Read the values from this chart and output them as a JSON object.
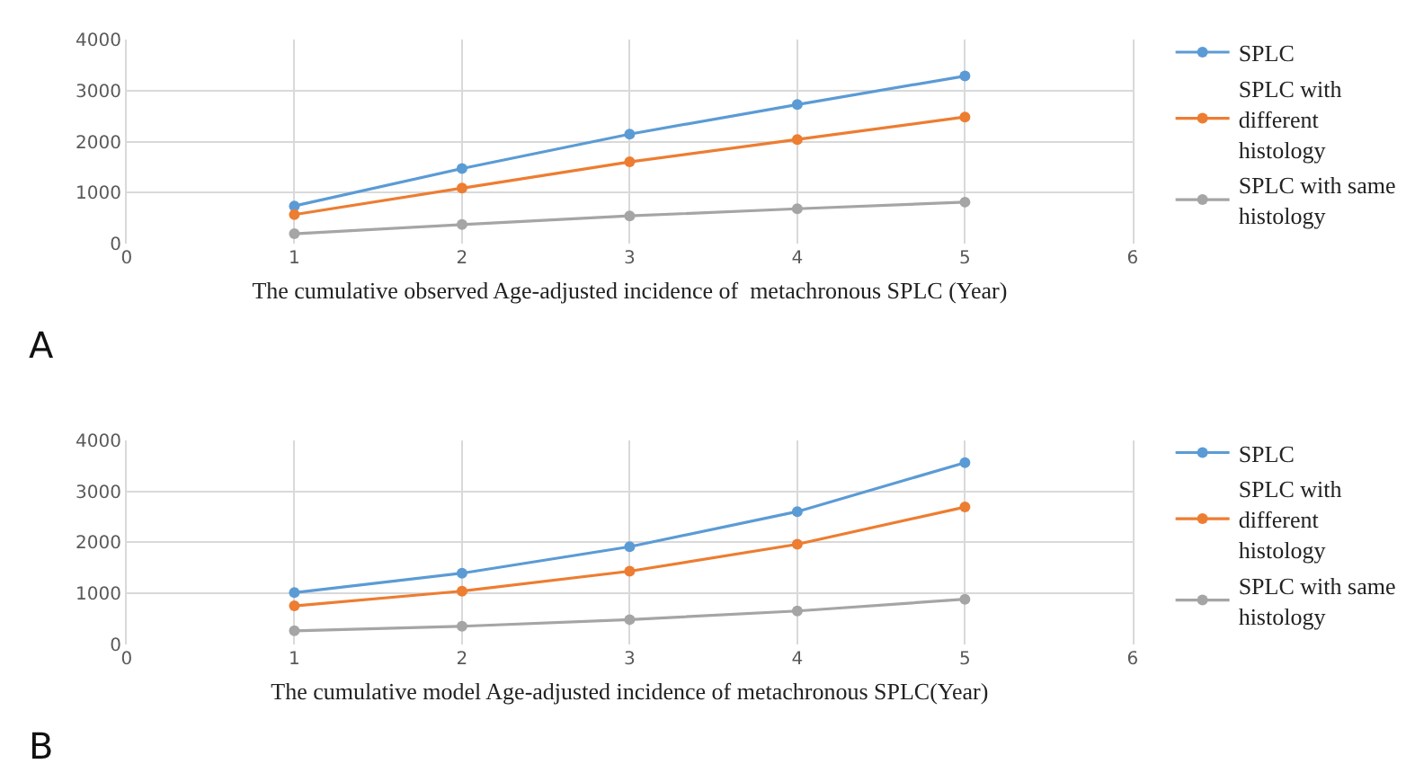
{
  "chart_data": [
    {
      "type": "line",
      "xlabel": "The cumulative observed Age-adjusted incidence of  metachronous SPLC (Year)",
      "annotations": [
        "A"
      ],
      "x": [
        1,
        2,
        3,
        4,
        5
      ],
      "xlim": [
        0,
        6
      ],
      "xticks": [
        0,
        1,
        2,
        3,
        4,
        5,
        6
      ],
      "ylim": [
        0,
        4000
      ],
      "yticks": [
        0,
        1000,
        2000,
        3000,
        4000
      ],
      "grid": true,
      "legend": "right",
      "marker": "circle",
      "line_style": "solid",
      "series": [
        {
          "name": "SPLC",
          "color": "#5b9bd5",
          "values": [
            740,
            1475,
            2150,
            2730,
            3290
          ]
        },
        {
          "name": "SPLC with different histology",
          "color": "#ed7d31",
          "values": [
            570,
            1090,
            1605,
            2045,
            2485
          ]
        },
        {
          "name": "SPLC with same histology",
          "color": "#a5a5a5",
          "values": [
            195,
            375,
            545,
            685,
            815
          ]
        }
      ]
    },
    {
      "type": "line",
      "xlabel": "The cumulative model Age-adjusted incidence of metachronous SPLC(Year)",
      "annotations": [
        "B"
      ],
      "x": [
        1,
        2,
        3,
        4,
        5
      ],
      "xlim": [
        0,
        6
      ],
      "xticks": [
        0,
        1,
        2,
        3,
        4,
        5,
        6
      ],
      "ylim": [
        0,
        4000
      ],
      "yticks": [
        0,
        1000,
        2000,
        3000,
        4000
      ],
      "grid": true,
      "legend": "right",
      "marker": "circle",
      "line_style": "solid",
      "series": [
        {
          "name": "SPLC",
          "color": "#5b9bd5",
          "values": [
            1010,
            1390,
            1910,
            2600,
            3560
          ]
        },
        {
          "name": "SPLC with different histology",
          "color": "#ed7d31",
          "values": [
            750,
            1040,
            1430,
            1960,
            2690
          ]
        },
        {
          "name": "SPLC with same histology",
          "color": "#a5a5a5",
          "values": [
            260,
            350,
            480,
            650,
            880
          ]
        }
      ]
    }
  ]
}
